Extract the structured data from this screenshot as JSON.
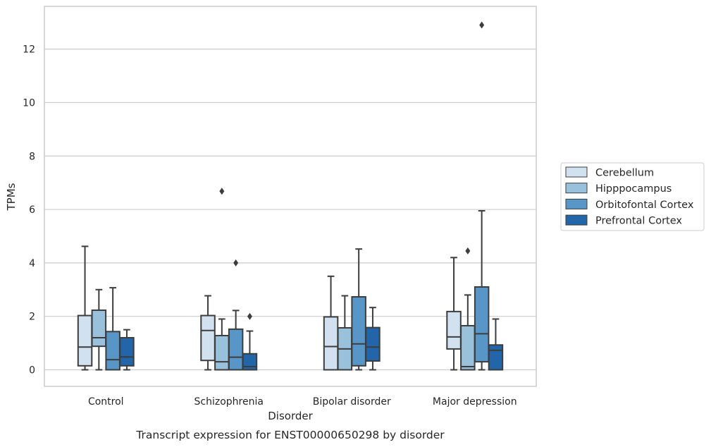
{
  "chart_data": {
    "type": "box",
    "title": "",
    "caption": "Transcript expression for ENST00000650298 by disorder",
    "xlabel": "Disorder",
    "ylabel": "TPMs",
    "ylim": [
      -0.62,
      13.6
    ],
    "yticks": [
      0,
      2,
      4,
      6,
      8,
      10,
      12
    ],
    "grid": "horizontal",
    "legend_position": "right",
    "categories": [
      "Control",
      "Schizophrenia",
      "Bipolar disorder",
      "Major depression"
    ],
    "series": [
      {
        "name": "Cerebellum",
        "color": "#d1e1f0",
        "boxes": [
          {
            "whisker_low": 0.0,
            "q1": 0.15,
            "median": 0.85,
            "q3": 2.03,
            "whisker_high": 4.62,
            "outliers": []
          },
          {
            "whisker_low": 0.0,
            "q1": 0.35,
            "median": 1.47,
            "q3": 2.03,
            "whisker_high": 2.77,
            "outliers": []
          },
          {
            "whisker_low": 0.0,
            "q1": 0.0,
            "median": 0.87,
            "q3": 1.98,
            "whisker_high": 3.5,
            "outliers": []
          },
          {
            "whisker_low": 0.0,
            "q1": 0.78,
            "median": 1.23,
            "q3": 2.18,
            "whisker_high": 4.2,
            "outliers": []
          }
        ]
      },
      {
        "name": "Hipppocampus",
        "color": "#9ac1dc",
        "boxes": [
          {
            "whisker_low": 0.0,
            "q1": 0.88,
            "median": 1.2,
            "q3": 2.23,
            "whisker_high": 3.0,
            "outliers": []
          },
          {
            "whisker_low": 0.0,
            "q1": 0.0,
            "median": 0.3,
            "q3": 1.28,
            "whisker_high": 1.9,
            "outliers": [
              6.68
            ]
          },
          {
            "whisker_low": 0.0,
            "q1": 0.0,
            "median": 0.78,
            "q3": 1.57,
            "whisker_high": 2.77,
            "outliers": []
          },
          {
            "whisker_low": 0.0,
            "q1": 0.0,
            "median": 0.12,
            "q3": 1.65,
            "whisker_high": 2.8,
            "outliers": [
              4.45
            ]
          }
        ]
      },
      {
        "name": "Orbitofontal Cortex",
        "color": "#5896c7",
        "boxes": [
          {
            "whisker_low": 0.0,
            "q1": 0.0,
            "median": 0.38,
            "q3": 1.43,
            "whisker_high": 3.07,
            "outliers": []
          },
          {
            "whisker_low": 0.0,
            "q1": 0.0,
            "median": 0.47,
            "q3": 1.52,
            "whisker_high": 2.22,
            "outliers": [
              4.0
            ]
          },
          {
            "whisker_low": 0.0,
            "q1": 0.15,
            "median": 0.97,
            "q3": 2.73,
            "whisker_high": 4.52,
            "outliers": []
          },
          {
            "whisker_low": 0.0,
            "q1": 0.3,
            "median": 1.35,
            "q3": 3.1,
            "whisker_high": 5.95,
            "outliers": [
              12.9
            ]
          }
        ]
      },
      {
        "name": "Prefrontal Cortex",
        "color": "#2265a8",
        "boxes": [
          {
            "whisker_low": 0.0,
            "q1": 0.15,
            "median": 0.48,
            "q3": 1.2,
            "whisker_high": 1.5,
            "outliers": []
          },
          {
            "whisker_low": 0.0,
            "q1": 0.0,
            "median": 0.12,
            "q3": 0.6,
            "whisker_high": 1.45,
            "outliers": [
              2.0
            ]
          },
          {
            "whisker_low": 0.0,
            "q1": 0.33,
            "median": 0.85,
            "q3": 1.58,
            "whisker_high": 2.33,
            "outliers": []
          },
          {
            "whisker_low": 0.0,
            "q1": 0.0,
            "median": 0.73,
            "q3": 0.93,
            "whisker_high": 1.9,
            "outliers": []
          }
        ]
      }
    ]
  }
}
